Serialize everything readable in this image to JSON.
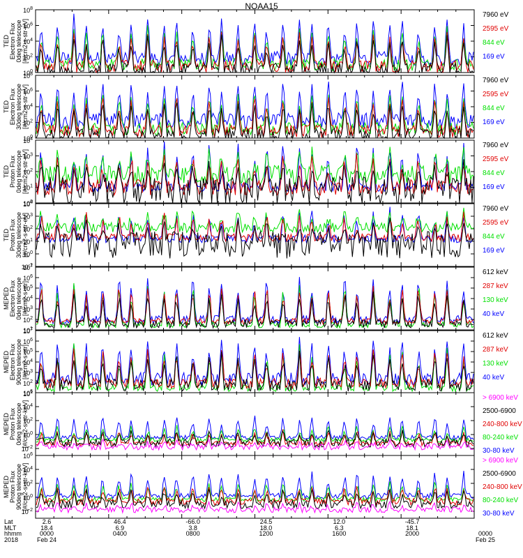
{
  "title": "NOAA15",
  "colors": {
    "black": "#000000",
    "red": "#e00000",
    "green": "#00e000",
    "blue": "#0000ff",
    "magenta": "#ff00ff"
  },
  "chart_data": [
    {
      "type": "line",
      "ylabel": [
        "TED",
        "Electron Flux",
        "0deg telescope",
        "[#/cm2-s-str-eV]"
      ],
      "ylim_exp": [
        0,
        8
      ],
      "ytick_exps": [
        0,
        2,
        4,
        6,
        8
      ],
      "series": [
        {
          "name": "7960 eV",
          "color": "black",
          "base": 0.3,
          "noise": 0.9,
          "spike": 4.5
        },
        {
          "name": "2595 eV",
          "color": "red",
          "base": 0.8,
          "noise": 0.8,
          "spike": 4.5
        },
        {
          "name": "844 eV",
          "color": "green",
          "base": 1.0,
          "noise": 0.8,
          "spike": 5.0
        },
        {
          "name": "169 eV",
          "color": "blue",
          "base": 1.8,
          "noise": 0.9,
          "spike": 5.5
        }
      ]
    },
    {
      "type": "line",
      "ylabel": [
        "TED",
        "Electron Flux",
        "30deg telescope",
        "[#/cm2-s-str-eV]"
      ],
      "ylim_exp": [
        0,
        8
      ],
      "ytick_exps": [
        0,
        2,
        4,
        6,
        8
      ],
      "series": [
        {
          "name": "7960 eV",
          "color": "black",
          "base": 0.4,
          "noise": 0.9,
          "spike": 4.5
        },
        {
          "name": "2595 eV",
          "color": "red",
          "base": 0.9,
          "noise": 0.8,
          "spike": 4.5
        },
        {
          "name": "844 eV",
          "color": "green",
          "base": 1.2,
          "noise": 0.8,
          "spike": 5.0
        },
        {
          "name": "169 eV",
          "color": "blue",
          "base": 2.2,
          "noise": 1.0,
          "spike": 5.5
        }
      ]
    },
    {
      "type": "line",
      "ylabel": [
        "TED",
        "Proton Flux",
        "0deg telescope",
        "[#/cm2-s-str-eV]"
      ],
      "ylim_exp": [
        0,
        4
      ],
      "ytick_exps": [
        0,
        1,
        2,
        3,
        4
      ],
      "series": [
        {
          "name": "7960 eV",
          "color": "black",
          "base": 0.8,
          "noise": 0.9,
          "spike": 1.8
        },
        {
          "name": "2595 eV",
          "color": "red",
          "base": 1.0,
          "noise": 0.5,
          "spike": 2.0
        },
        {
          "name": "844 eV",
          "color": "green",
          "base": 1.8,
          "noise": 0.6,
          "spike": 1.5
        },
        {
          "name": "169 eV",
          "color": "blue",
          "base": 1.0,
          "noise": 0.3,
          "spike": 2.8
        }
      ]
    },
    {
      "type": "line",
      "ylabel": [
        "TED",
        "Proton Flux",
        "30deg telescope",
        "[#/cm2-s-str-eV]"
      ],
      "ylim_exp": [
        -1,
        4
      ],
      "ytick_exps": [
        -1,
        0,
        1,
        2,
        3,
        4
      ],
      "series": [
        {
          "name": "7960 eV",
          "color": "black",
          "base": 0.7,
          "noise": 1.1,
          "spike": 1.8
        },
        {
          "name": "2595 eV",
          "color": "red",
          "base": 1.3,
          "noise": 0.3,
          "spike": 1.8
        },
        {
          "name": "844 eV",
          "color": "green",
          "base": 2.1,
          "noise": 0.4,
          "spike": 1.2
        },
        {
          "name": "169 eV",
          "color": "blue",
          "base": 1.2,
          "noise": 0.3,
          "spike": 2.2
        }
      ]
    },
    {
      "type": "line",
      "ylabel": [
        "MEPED",
        "Electron Flux",
        "0deg telescope",
        "[#/cm2-s-str]"
      ],
      "ylim_exp": [
        1,
        7
      ],
      "ytick_exps": [
        1,
        2,
        3,
        4,
        5,
        6,
        7
      ],
      "series": [
        {
          "name": "612 keV",
          "color": "black",
          "base": 1.6,
          "noise": 0.4,
          "spike": 3.0
        },
        {
          "name": "287 keV",
          "color": "red",
          "base": 1.8,
          "noise": 0.3,
          "spike": 3.5
        },
        {
          "name": "130 keV",
          "color": "green",
          "base": 1.5,
          "noise": 0.3,
          "spike": 4.0
        },
        {
          "name": "40 keV",
          "color": "blue",
          "base": 2.0,
          "noise": 0.4,
          "spike": 4.3
        }
      ]
    },
    {
      "type": "line",
      "ylabel": [
        "MEPED",
        "Electron Flux",
        "90deg telescope",
        "[#/cm2-s-str]"
      ],
      "ylim_exp": [
        1,
        7
      ],
      "ytick_exps": [
        1,
        2,
        3,
        4,
        5,
        6,
        7
      ],
      "series": [
        {
          "name": "612 keV",
          "color": "black",
          "base": 1.8,
          "noise": 0.6,
          "spike": 3.0
        },
        {
          "name": "287 keV",
          "color": "red",
          "base": 2.0,
          "noise": 0.5,
          "spike": 3.3
        },
        {
          "name": "130 keV",
          "color": "green",
          "base": 1.5,
          "noise": 0.3,
          "spike": 4.0
        },
        {
          "name": "40 keV",
          "color": "blue",
          "base": 2.4,
          "noise": 0.6,
          "spike": 4.0
        }
      ]
    },
    {
      "type": "line",
      "ylabel": [
        "MEPED",
        "Proton Flux",
        "0deg telescope",
        "[#/cm2-s-str-keV]"
      ],
      "ylim_exp": [
        -3,
        6
      ],
      "ytick_exps": [
        -2,
        0,
        2,
        4,
        6
      ],
      "series": [
        {
          "name": "> 6900 keV",
          "color": "magenta",
          "base": -1.8,
          "noise": 0.4,
          "spike": 0.8
        },
        {
          "name": "2500-6900",
          "color": "black",
          "base": -1.2,
          "noise": 0.6,
          "spike": 1.8
        },
        {
          "name": "240-800 keV",
          "color": "red",
          "base": -1.3,
          "noise": 0.3,
          "spike": 2.0
        },
        {
          "name": "80-240 keV",
          "color": "green",
          "base": -0.8,
          "noise": 0.3,
          "spike": 2.0
        },
        {
          "name": "30-80 keV",
          "color": "blue",
          "base": -0.4,
          "noise": 0.3,
          "spike": 3.2
        }
      ]
    },
    {
      "type": "line",
      "ylabel": [
        "MEPED",
        "Proton Flux",
        "90deg telescope",
        "[#/cm2-s-str-keV]"
      ],
      "ylim_exp": [
        -3,
        6
      ],
      "ytick_exps": [
        -2,
        0,
        2,
        4,
        6
      ],
      "series": [
        {
          "name": "> 6900 keV",
          "color": "magenta",
          "base": -1.8,
          "noise": 0.4,
          "spike": 0.8
        },
        {
          "name": "2500-6900",
          "color": "black",
          "base": -1.0,
          "noise": 0.6,
          "spike": 2.0
        },
        {
          "name": "240-800 keV",
          "color": "red",
          "base": -0.6,
          "noise": 0.5,
          "spike": 2.2
        },
        {
          "name": "80-240 keV",
          "color": "green",
          "base": -0.3,
          "noise": 0.3,
          "spike": 2.4
        },
        {
          "name": "30-80 keV",
          "color": "blue",
          "base": 0.2,
          "noise": 0.4,
          "spike": 3.6
        }
      ]
    }
  ],
  "time_axis": {
    "row_labels": [
      "Lat",
      "MLT",
      "hhmm",
      "2018"
    ],
    "ticks": [
      {
        "lat": "2.6",
        "mlt": "18.4",
        "hhmm": "0000",
        "date": "Feb 24"
      },
      {
        "lat": "46.4",
        "mlt": "6.9",
        "hhmm": "0400",
        "date": ""
      },
      {
        "lat": "-66.0",
        "mlt": "3.8",
        "hhmm": "0800",
        "date": ""
      },
      {
        "lat": "24.5",
        "mlt": "18.0",
        "hhmm": "1200",
        "date": ""
      },
      {
        "lat": "12.0",
        "mlt": "6.3",
        "hhmm": "1600",
        "date": ""
      },
      {
        "lat": "-45.7",
        "mlt": "18.1",
        "hhmm": "2000",
        "date": ""
      },
      {
        "lat": "",
        "mlt": "",
        "hhmm": "0000",
        "date": "Feb 25"
      }
    ]
  }
}
